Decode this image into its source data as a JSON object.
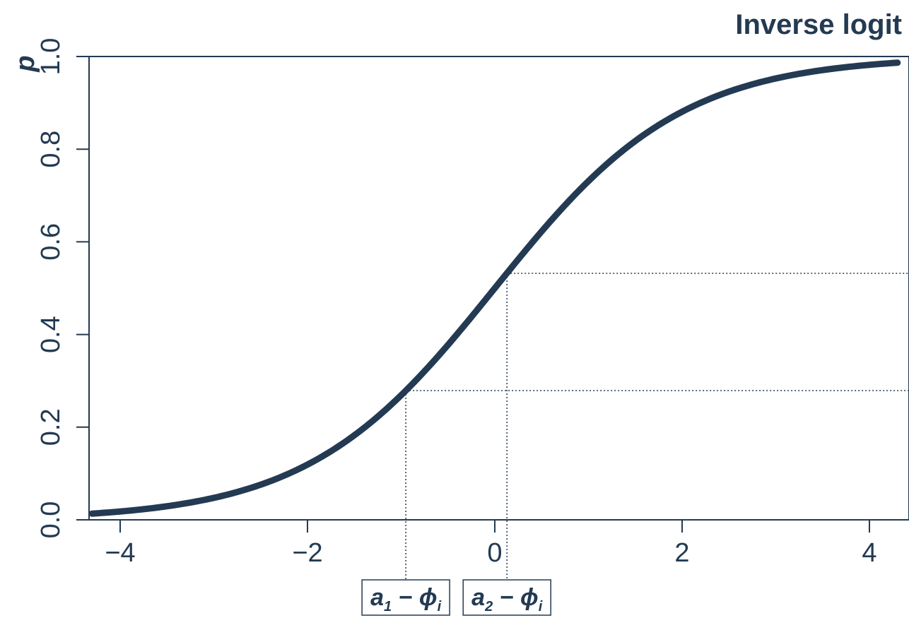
{
  "chart_data": {
    "type": "line",
    "title": "Inverse logit",
    "xlabel": "",
    "ylabel": "p",
    "xlim": [
      -4.3,
      4.3
    ],
    "ylim": [
      0.0,
      1.0
    ],
    "x_ticks": [
      -4,
      -2,
      0,
      2,
      4
    ],
    "x_tick_labels": [
      "−4",
      "−2",
      "0",
      "2",
      "4"
    ],
    "y_ticks": [
      0.0,
      0.2,
      0.4,
      0.6,
      0.8,
      1.0
    ],
    "y_tick_labels": [
      "0.0",
      "0.2",
      "0.4",
      "0.6",
      "0.8",
      "1.0"
    ],
    "grid": false,
    "series": [
      {
        "function": "inverse_logit",
        "x_range": [
          -4.3,
          4.3
        ],
        "color": "#233a52"
      }
    ],
    "reference_points": [
      {
        "x": -0.95,
        "y": 0.279,
        "label_main": "a",
        "label_sub": "1",
        "label_rest": " − ϕ",
        "label_sub2": "i"
      },
      {
        "x": 0.13,
        "y": 0.532,
        "label_main": "a",
        "label_sub": "2",
        "label_rest": " − ϕ",
        "label_sub2": "i"
      }
    ]
  }
}
